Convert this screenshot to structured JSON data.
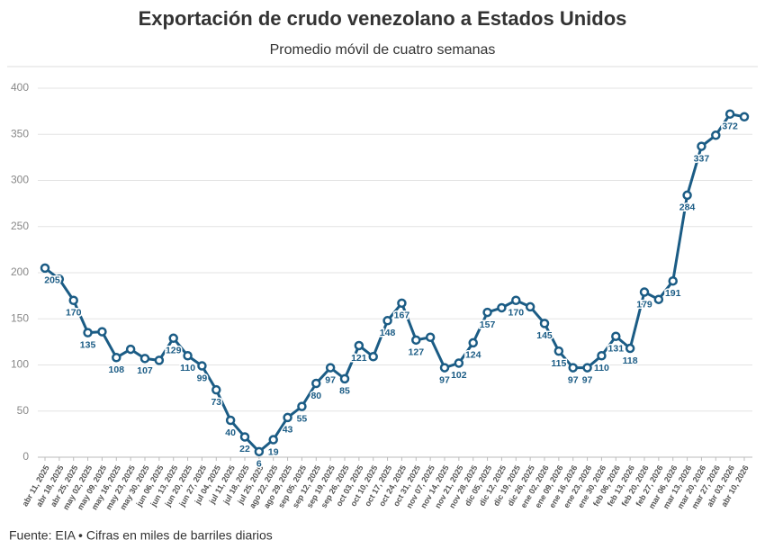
{
  "chart_data": {
    "type": "line",
    "title": "Exportación de crudo venezolano a Estados Unidos",
    "subtitle": "Promedio móvil de cuatro semanas",
    "source": "Fuente: EIA • Cifras en miles de barriles diarios",
    "categories": [
      "abr 11, 2025",
      "abr 18, 2025",
      "abr 25, 2025",
      "may 02, 2025",
      "may 09, 2025",
      "may 16, 2025",
      "may 23, 2025",
      "may 30, 2025",
      "jun 06, 2025",
      "jun 13, 2025",
      "jun 20, 2025",
      "jun 27, 2025",
      "jul 04, 2025",
      "jul 11, 2025",
      "jul 18, 2025",
      "jul 25, 2025",
      "ago 22, 2025",
      "ago 29, 2025",
      "sep 05, 2025",
      "sep 12, 2025",
      "sep 19, 2025",
      "sep 26, 2025",
      "oct 03, 2025",
      "oct 10, 2025",
      "oct 17, 2025",
      "oct 24, 2025",
      "oct 31, 2025",
      "nov 07, 2025",
      "nov 14, 2025",
      "nov 21, 2025",
      "nov 28, 2025",
      "dic 05, 2025",
      "dic 12, 2025",
      "dic 19, 2025",
      "dic 26, 2025",
      "ene 02, 2026",
      "ene 09, 2026",
      "ene 16, 2026",
      "ene 23, 2026",
      "ene 30, 2026",
      "feb 06, 2026",
      "feb 13, 2026",
      "feb 20, 2026",
      "feb 27, 2026",
      "mar 06, 2026",
      "mar 13, 2026",
      "mar 20, 2026",
      "mar 27, 2026",
      "abr 03, 2026",
      "abr 10, 2026"
    ],
    "values": [
      205,
      193,
      170,
      135,
      136,
      108,
      117,
      107,
      105,
      129,
      110,
      99,
      73,
      40,
      22,
      6,
      19,
      43,
      55,
      80,
      97,
      85,
      121,
      109,
      148,
      167,
      127,
      130,
      97,
      102,
      124,
      157,
      162,
      170,
      163,
      145,
      115,
      97,
      97,
      110,
      131,
      118,
      179,
      171,
      191,
      284,
      337,
      349,
      372,
      369
    ],
    "value_labels": [
      "205",
      null,
      "170",
      "135",
      null,
      "108",
      null,
      "107",
      null,
      "129",
      "110",
      "99",
      "73",
      "40",
      "22",
      "6",
      "19",
      "43",
      "55",
      "80",
      "97",
      "85",
      "121",
      null,
      "148",
      "167",
      "127",
      null,
      "97",
      "102",
      "124",
      "157",
      null,
      "170",
      null,
      "145",
      "115",
      "97",
      "97",
      "110",
      "131",
      "118",
      "179",
      null,
      "191",
      "284",
      "337",
      null,
      "372",
      null
    ],
    "color": "#1b5c85",
    "ylim": [
      0,
      400
    ],
    "yticks": [
      0,
      50,
      100,
      150,
      200,
      250,
      300,
      350,
      400
    ],
    "grid": true
  }
}
